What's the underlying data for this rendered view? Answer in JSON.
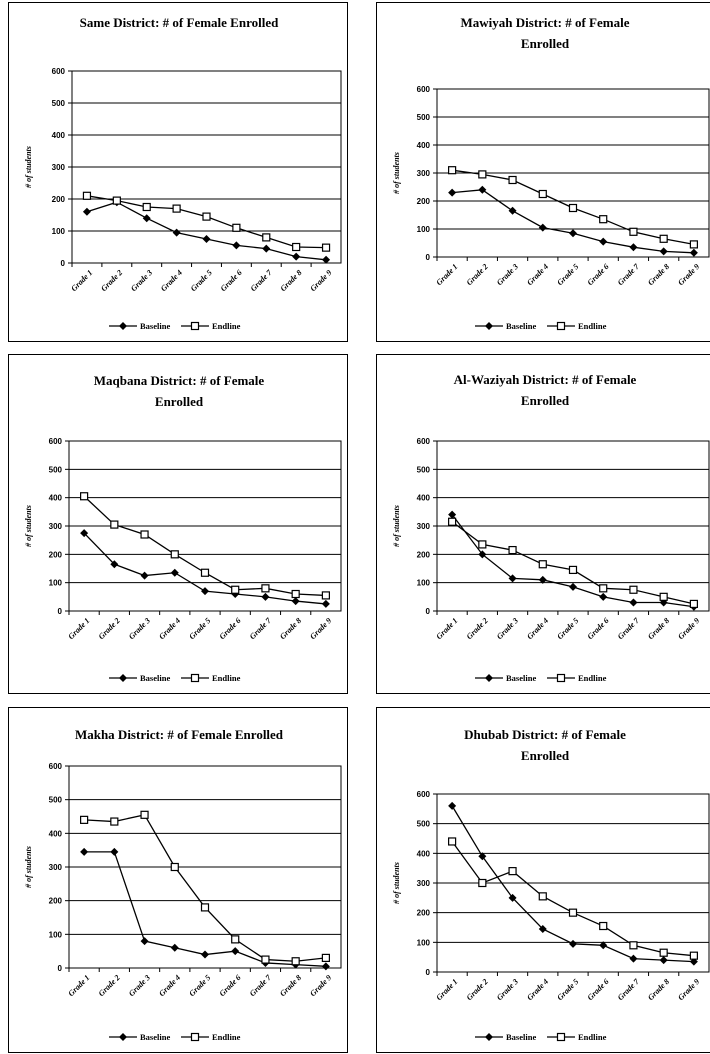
{
  "legend": {
    "baseline": "Baseline",
    "endline": "Endline"
  },
  "categories": [
    "Grade 1",
    "Grade 2",
    "Grade 3",
    "Grade 4",
    "Grade 5",
    "Grade 6",
    "Grade 7",
    "Grade 8",
    "Grade 9"
  ],
  "chart_data": [
    {
      "type": "line",
      "title": [
        "Same District: # of Female Enrolled"
      ],
      "ylabel": "# of students",
      "ylim": [
        0,
        600
      ],
      "yticks": [
        0,
        100,
        200,
        300,
        400,
        500,
        600
      ],
      "grid": true,
      "legend_position": "bottom",
      "series": [
        {
          "name": "Baseline",
          "marker": "diamond",
          "values": [
            160,
            190,
            140,
            95,
            75,
            55,
            45,
            20,
            10
          ]
        },
        {
          "name": "Endline",
          "marker": "square",
          "values": [
            210,
            195,
            175,
            170,
            145,
            110,
            80,
            50,
            48
          ]
        }
      ]
    },
    {
      "type": "line",
      "title": [
        "Mawiyah District: # of Female",
        "Enrolled"
      ],
      "ylabel": "# of students",
      "ylim": [
        0,
        600
      ],
      "yticks": [
        0,
        100,
        200,
        300,
        400,
        500,
        600
      ],
      "grid": true,
      "legend_position": "bottom",
      "series": [
        {
          "name": "Baseline",
          "marker": "diamond",
          "values": [
            230,
            240,
            165,
            105,
            85,
            55,
            35,
            20,
            15
          ]
        },
        {
          "name": "Endline",
          "marker": "square",
          "values": [
            310,
            295,
            275,
            225,
            175,
            135,
            90,
            65,
            45
          ]
        }
      ]
    },
    {
      "type": "line",
      "title": [
        "Maqbana District: # of Female",
        "Enrolled"
      ],
      "ylabel": "# of students",
      "ylim": [
        0,
        600
      ],
      "yticks": [
        0,
        100,
        200,
        300,
        400,
        500,
        600
      ],
      "grid": true,
      "legend_position": "bottom",
      "series": [
        {
          "name": "Baseline",
          "marker": "diamond",
          "values": [
            275,
            165,
            125,
            135,
            70,
            60,
            50,
            35,
            25
          ]
        },
        {
          "name": "Endline",
          "marker": "square",
          "values": [
            405,
            305,
            270,
            200,
            135,
            75,
            80,
            60,
            55
          ]
        }
      ]
    },
    {
      "type": "line",
      "title": [
        "Al-Waziyah District: # of Female",
        "Enrolled"
      ],
      "ylabel": "# of students",
      "ylim": [
        0,
        600
      ],
      "yticks": [
        0,
        100,
        200,
        300,
        400,
        500,
        600
      ],
      "grid": true,
      "legend_position": "bottom",
      "series": [
        {
          "name": "Baseline",
          "marker": "diamond",
          "values": [
            340,
            200,
            115,
            110,
            85,
            50,
            30,
            30,
            15
          ]
        },
        {
          "name": "Endline",
          "marker": "square",
          "values": [
            315,
            235,
            215,
            165,
            145,
            80,
            75,
            50,
            25
          ]
        }
      ]
    },
    {
      "type": "line",
      "title": [
        "Makha District: # of Female Enrolled"
      ],
      "ylabel": "# of students",
      "ylim": [
        0,
        600
      ],
      "yticks": [
        0,
        100,
        200,
        300,
        400,
        500,
        600
      ],
      "grid": true,
      "legend_position": "bottom",
      "series": [
        {
          "name": "Baseline",
          "marker": "diamond",
          "values": [
            345,
            345,
            80,
            60,
            40,
            50,
            15,
            10,
            5
          ]
        },
        {
          "name": "Endline",
          "marker": "square",
          "values": [
            440,
            435,
            455,
            300,
            180,
            85,
            25,
            20,
            30
          ]
        }
      ]
    },
    {
      "type": "line",
      "title": [
        "Dhubab District: # of Female",
        "Enrolled"
      ],
      "ylabel": "# of students",
      "ylim": [
        0,
        600
      ],
      "yticks": [
        0,
        100,
        200,
        300,
        400,
        500,
        600
      ],
      "grid": true,
      "legend_position": "bottom",
      "series": [
        {
          "name": "Baseline",
          "marker": "diamond",
          "values": [
            560,
            390,
            250,
            145,
            95,
            90,
            45,
            40,
            35
          ]
        },
        {
          "name": "Endline",
          "marker": "square",
          "values": [
            440,
            300,
            340,
            255,
            200,
            155,
            90,
            65,
            55
          ]
        }
      ]
    }
  ]
}
